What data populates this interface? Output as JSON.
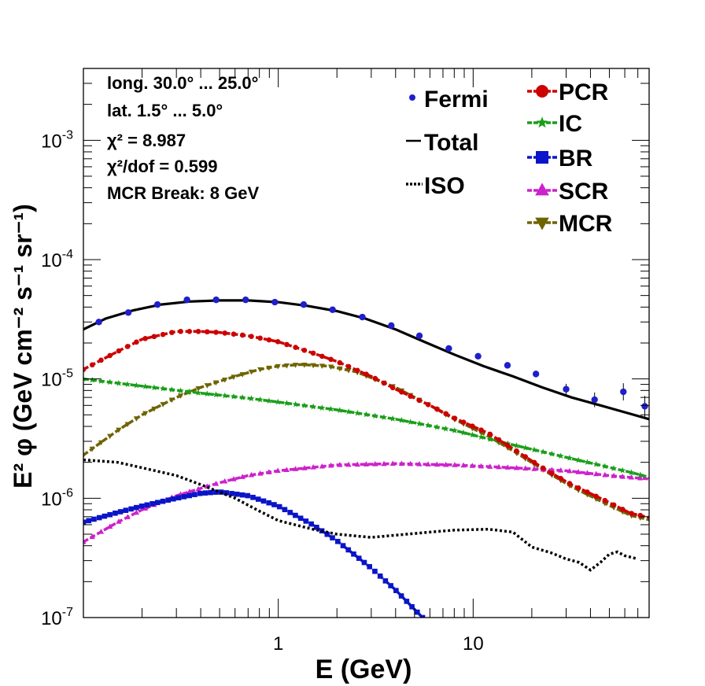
{
  "chart_data": {
    "type": "line",
    "log_x": true,
    "log_y": true,
    "xlabel": "E (GeV)",
    "ylabel": "E² φ (GeV cm⁻² s⁻¹ sr⁻¹)",
    "xlim": [
      0.1,
      80
    ],
    "ylim": [
      1e-07,
      0.004
    ],
    "x_tick_labels": [
      {
        "value": 1,
        "label": "1"
      },
      {
        "value": 10,
        "label": "10"
      }
    ],
    "y_tick_labels": [
      {
        "value": 1e-07,
        "base": "10",
        "exp": "-7"
      },
      {
        "value": 1e-06,
        "base": "10",
        "exp": "-6"
      },
      {
        "value": 1e-05,
        "base": "10",
        "exp": "-5"
      },
      {
        "value": 0.0001,
        "base": "10",
        "exp": "-4"
      },
      {
        "value": 0.001,
        "base": "10",
        "exp": "-3"
      }
    ],
    "info_lines": [
      "long. 30.0° ... 25.0°",
      "lat. 1.5° ... 5.0°",
      "χ² = 8.987",
      "χ²/dof = 0.599",
      "MCR Break:  8 GeV"
    ],
    "series": [
      {
        "name": "Fermi",
        "style": "points",
        "color": "#1f1fcc",
        "x": [
          0.12,
          0.17,
          0.24,
          0.34,
          0.48,
          0.68,
          0.96,
          1.35,
          1.9,
          2.7,
          3.8,
          5.3,
          7.5,
          10.6,
          15,
          21,
          30,
          42,
          59,
          76
        ],
        "y": [
          3e-05,
          3.6e-05,
          4.2e-05,
          4.6e-05,
          4.6e-05,
          4.6e-05,
          4.4e-05,
          4.2e-05,
          3.8e-05,
          3.3e-05,
          2.8e-05,
          2.3e-05,
          1.8e-05,
          1.55e-05,
          1.3e-05,
          1.1e-05,
          8.2e-06,
          6.7e-06,
          7.8e-06,
          5.9e-06
        ],
        "err_lo": [
          2.9e-05,
          3.5e-05,
          4.1e-05,
          4.5e-05,
          4.5e-05,
          4.5e-05,
          4.3e-05,
          4.1e-05,
          3.7e-05,
          3.2e-05,
          2.7e-05,
          2.2e-05,
          1.75e-05,
          1.5e-05,
          1.25e-05,
          1.03e-05,
          7.4e-06,
          5.8e-06,
          6.6e-06,
          4.8e-06
        ],
        "err_hi": [
          3.1e-05,
          3.7e-05,
          4.3e-05,
          4.7e-05,
          4.7e-05,
          4.7e-05,
          4.5e-05,
          4.3e-05,
          3.9e-05,
          3.4e-05,
          2.9e-05,
          2.4e-05,
          1.85e-05,
          1.6e-05,
          1.35e-05,
          1.17e-05,
          9.1e-06,
          7.7e-06,
          9.2e-06,
          7.2e-06
        ]
      },
      {
        "name": "Total",
        "style": "solid",
        "color": "#000000",
        "x": [
          0.1,
          0.13,
          0.18,
          0.25,
          0.35,
          0.5,
          0.7,
          1.0,
          1.4,
          2.0,
          2.8,
          4.0,
          5.6,
          8.0,
          11.3,
          16,
          22.6,
          32,
          45,
          64,
          80
        ],
        "y": [
          2.6e-05,
          3.2e-05,
          3.75e-05,
          4.2e-05,
          4.45e-05,
          4.55e-05,
          4.55e-05,
          4.4e-05,
          4.1e-05,
          3.7e-05,
          3.2e-05,
          2.6e-05,
          2.05e-05,
          1.6e-05,
          1.28e-05,
          1.05e-05,
          8.5e-06,
          7e-06,
          6e-06,
          5.1e-06,
          4.6e-06
        ]
      },
      {
        "name": "ISO",
        "style": "dotted",
        "color": "#000000",
        "x": [
          0.1,
          0.15,
          0.2,
          0.3,
          0.4,
          0.6,
          0.8,
          1.0,
          1.5,
          2.0,
          3.0,
          4.0,
          6.0,
          8.0,
          12.0,
          16.0,
          20.0,
          25.0,
          30.0,
          35.0,
          40.0,
          45.0,
          50.0,
          55.0,
          60.0,
          70.0
        ],
        "y": [
          2.1e-06,
          2e-06,
          1.8e-06,
          1.55e-06,
          1.3e-06,
          1e-06,
          7.8e-07,
          6.5e-07,
          5.5e-07,
          5e-07,
          4.7e-07,
          4.9e-07,
          5.2e-07,
          5.4e-07,
          5.5e-07,
          5.2e-07,
          3.9e-07,
          3.5e-07,
          3.1e-07,
          2.9e-07,
          2.5e-07,
          2.9e-07,
          3.4e-07,
          3.55e-07,
          3.3e-07,
          3.1e-07
        ]
      },
      {
        "name": "PCR",
        "style": "dashed",
        "marker": "circle",
        "color": "#cc0000",
        "x": [
          0.1,
          0.15,
          0.2,
          0.3,
          0.4,
          0.5,
          0.7,
          1.0,
          1.5,
          2.0,
          3.0,
          4.0,
          6.0,
          8.0,
          12.0,
          16.0,
          24.0,
          32.0,
          48.0,
          64.0,
          80.0
        ],
        "y": [
          1.2e-05,
          1.7e-05,
          2.15e-05,
          2.5e-05,
          2.5e-05,
          2.45e-05,
          2.3e-05,
          2.05e-05,
          1.65e-05,
          1.4e-05,
          1.05e-05,
          8.2e-06,
          6e-06,
          4.7e-06,
          3.5e-06,
          2.6e-06,
          1.7e-06,
          1.3e-06,
          9.5e-07,
          7.5e-07,
          6.9e-07
        ]
      },
      {
        "name": "IC",
        "style": "dashed",
        "marker": "star",
        "color": "#1a9e1a",
        "x": [
          0.1,
          0.2,
          0.4,
          0.7,
          1.0,
          2.0,
          4.0,
          8.0,
          16.0,
          32.0,
          64.0,
          80.0
        ],
        "y": [
          1e-05,
          8.7e-06,
          7.6e-06,
          6.9e-06,
          6.4e-06,
          5.5e-06,
          4.6e-06,
          3.7e-06,
          2.8e-06,
          2.15e-06,
          1.65e-06,
          1.5e-06
        ]
      },
      {
        "name": "BR",
        "style": "dashed",
        "marker": "square",
        "color": "#0a14c8",
        "x": [
          0.1,
          0.15,
          0.2,
          0.3,
          0.4,
          0.5,
          0.7,
          1.0,
          1.5,
          2.0,
          3.0,
          4.0,
          5.5
        ],
        "y": [
          6.3e-07,
          7.6e-07,
          8.6e-07,
          1e-06,
          1.1e-06,
          1.13e-06,
          1.05e-06,
          8.6e-07,
          6e-07,
          4.4e-07,
          2.6e-07,
          1.7e-07,
          1e-07
        ]
      },
      {
        "name": "SCR",
        "style": "dashed",
        "marker": "triangle-up",
        "color": "#cc22cc",
        "x": [
          0.1,
          0.15,
          0.2,
          0.3,
          0.5,
          0.7,
          1.0,
          2.0,
          4.0,
          8.0,
          16.0,
          30.0,
          50.0,
          80.0
        ],
        "y": [
          4.3e-07,
          6.3e-07,
          8e-07,
          1.05e-06,
          1.35e-06,
          1.55e-06,
          1.7e-06,
          1.9e-06,
          1.95e-06,
          1.9e-06,
          1.8e-06,
          1.7e-06,
          1.55e-06,
          1.45e-06
        ]
      },
      {
        "name": "MCR",
        "style": "dashed",
        "marker": "triangle-down",
        "color": "#6e6400",
        "x": [
          0.1,
          0.15,
          0.2,
          0.3,
          0.4,
          0.6,
          0.8,
          1.0,
          1.3,
          1.8,
          2.5,
          4.0,
          6.0,
          8.0,
          12.0,
          16.0,
          24.0,
          32.0,
          48.0,
          64.0,
          80.0
        ],
        "y": [
          2.3e-06,
          3.7e-06,
          5e-06,
          7e-06,
          8.5e-06,
          1.05e-05,
          1.2e-05,
          1.28e-05,
          1.32e-05,
          1.28e-05,
          1.15e-05,
          8.5e-06,
          6e-06,
          4.6e-06,
          3.3e-06,
          2.5e-06,
          1.65e-06,
          1.25e-06,
          9e-07,
          7.2e-07,
          6.6e-07
        ]
      }
    ]
  }
}
